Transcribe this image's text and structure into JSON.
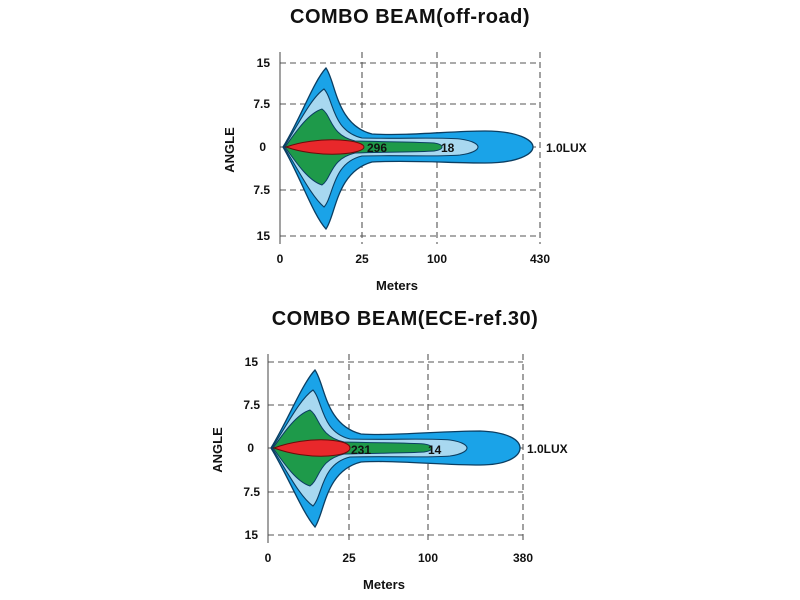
{
  "chart_data": [
    {
      "type": "area",
      "title": "COMBO  BEAM(off-road)",
      "xlabel": "Meters",
      "ylabel": "ANGLE",
      "x_ticks": [
        "0",
        "25",
        "100",
        "430"
      ],
      "y_ticks": [
        "15",
        "7.5",
        "0",
        "7.5",
        "15"
      ],
      "grid": true,
      "isolux_labels": [
        "296",
        "18",
        "1.0LUX"
      ],
      "contours": [
        {
          "level": "1.0LUX",
          "color": "#1aa3e8",
          "reach_label": "430"
        },
        {
          "level": "outer-mid",
          "color": "#a8d8f0"
        },
        {
          "level": "18",
          "color": "#1e9a4a"
        },
        {
          "level": "296",
          "color": "#e8282b"
        }
      ]
    },
    {
      "type": "area",
      "title": "COMBO  BEAM(ECE-ref.30)",
      "xlabel": "Meters",
      "ylabel": "ANGLE",
      "x_ticks": [
        "0",
        "25",
        "100",
        "380"
      ],
      "y_ticks": [
        "15",
        "7.5",
        "0",
        "7.5",
        "15"
      ],
      "grid": true,
      "isolux_labels": [
        "231",
        "14",
        "1.0LUX"
      ],
      "contours": [
        {
          "level": "1.0LUX",
          "color": "#1aa3e8",
          "reach_label": "380"
        },
        {
          "level": "outer-mid",
          "color": "#a8d8f0"
        },
        {
          "level": "14",
          "color": "#1e9a4a"
        },
        {
          "level": "231",
          "color": "#e8282b"
        }
      ]
    }
  ]
}
